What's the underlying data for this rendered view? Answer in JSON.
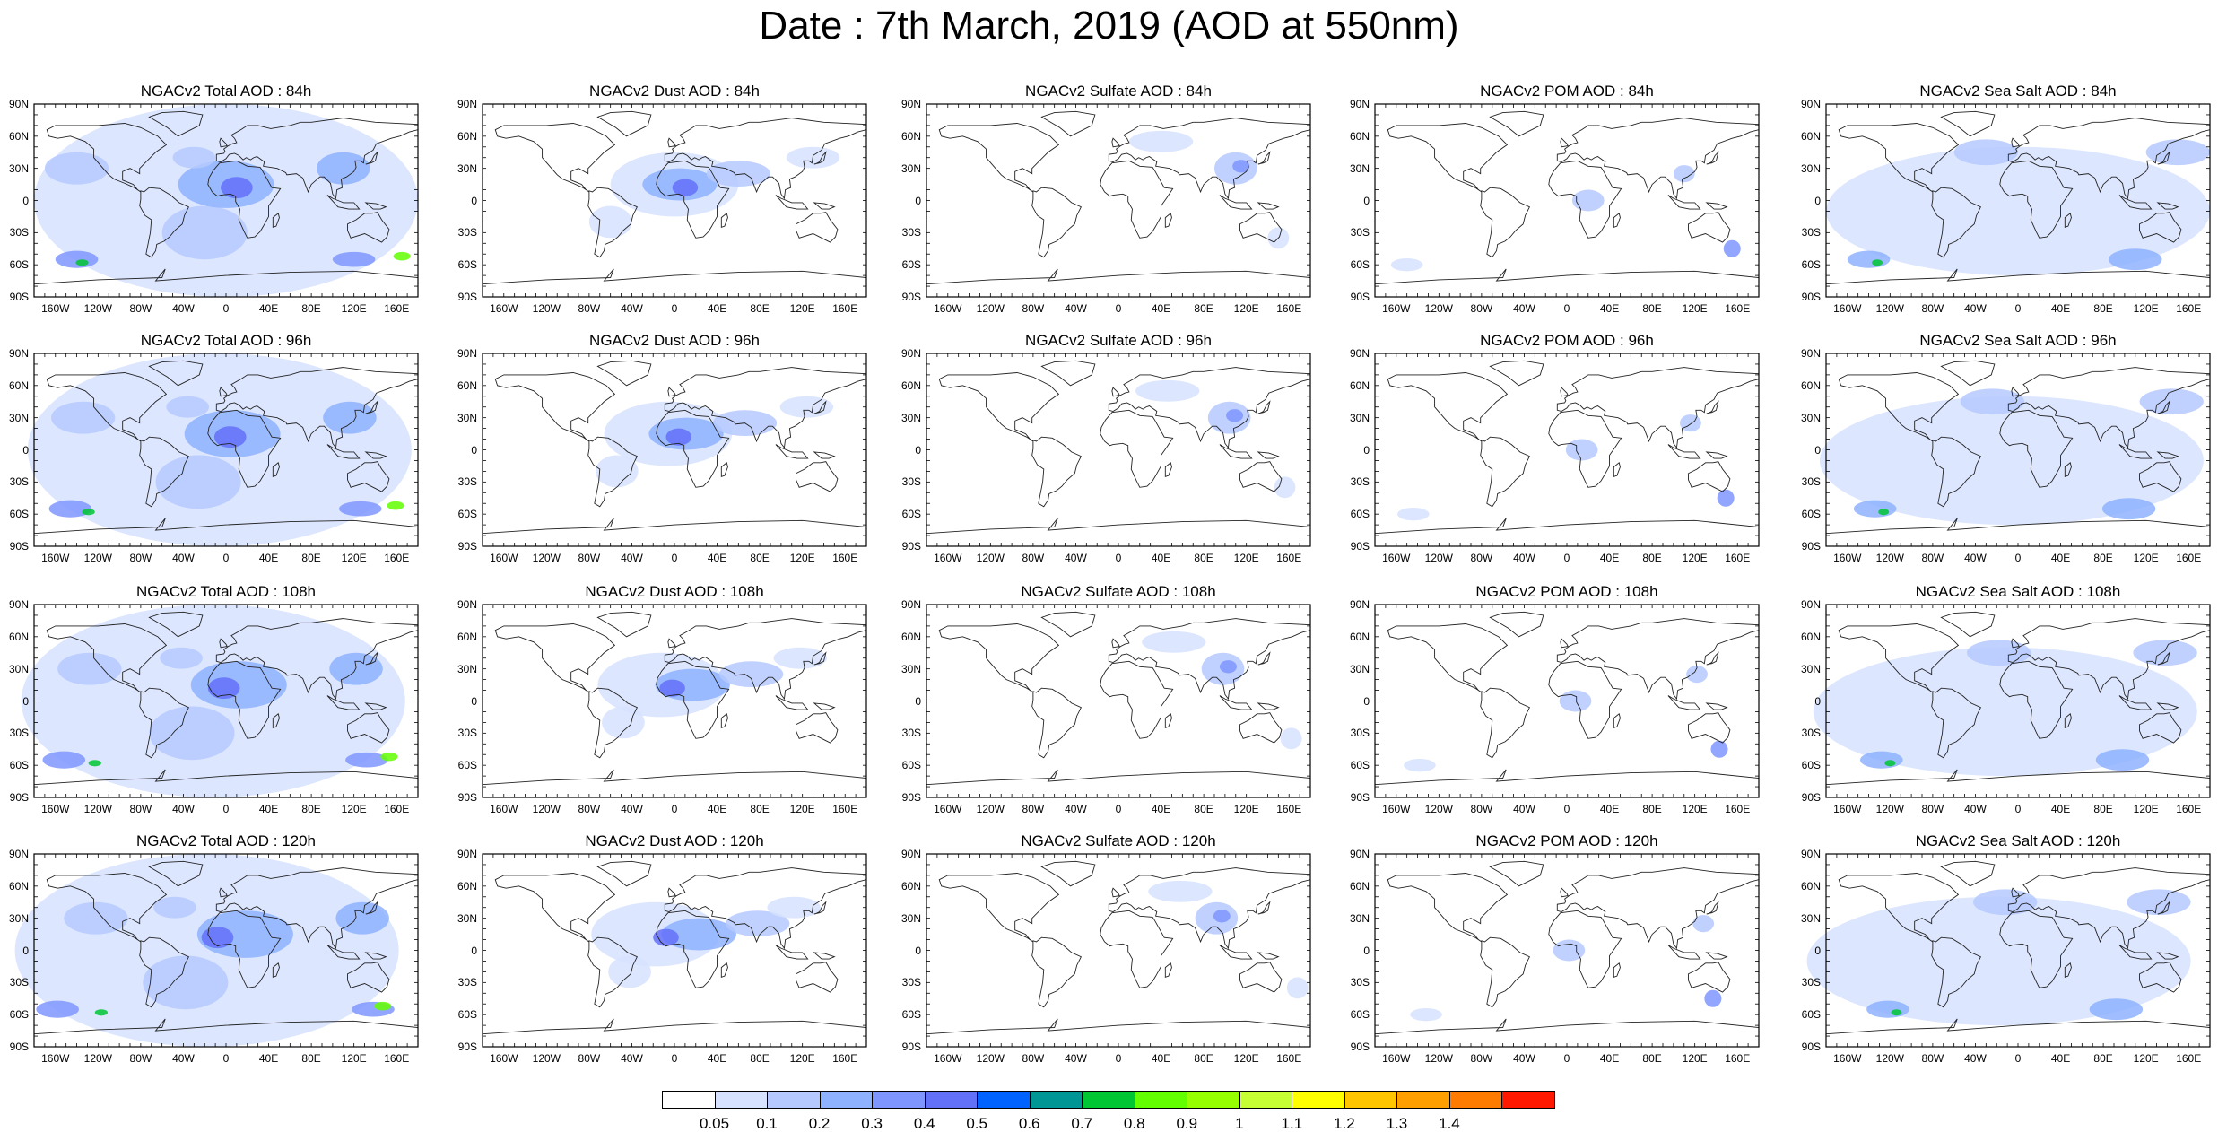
{
  "title": "Date : 7th March, 2019 (AOD at 550nm)",
  "lat_labels": [
    "90N",
    "60N",
    "30N",
    "0",
    "30S",
    "60S",
    "90S"
  ],
  "lon_labels": [
    "160W",
    "120W",
    "80W",
    "40W",
    "0",
    "40E",
    "80E",
    "120E",
    "160E"
  ],
  "species": [
    "Total",
    "Dust",
    "Sulfate",
    "POM",
    "Sea Salt"
  ],
  "lead_times": [
    "84h",
    "96h",
    "108h",
    "120h"
  ],
  "panels": [
    [
      "NGACv2 Total AOD : 84h",
      "NGACv2 Dust AOD : 84h",
      "NGACv2 Sulfate AOD : 84h",
      "NGACv2 POM AOD : 84h",
      "NGACv2 Sea Salt AOD : 84h"
    ],
    [
      "NGACv2 Total AOD : 96h",
      "NGACv2 Dust AOD : 96h",
      "NGACv2 Sulfate AOD : 96h",
      "NGACv2 POM AOD : 96h",
      "NGACv2 Sea Salt AOD : 96h"
    ],
    [
      "NGACv2 Total AOD : 108h",
      "NGACv2 Dust AOD : 108h",
      "NGACv2 Sulfate AOD : 108h",
      "NGACv2 POM AOD : 108h",
      "NGACv2 Sea Salt AOD : 108h"
    ],
    [
      "NGACv2 Total AOD : 120h",
      "NGACv2 Dust AOD : 120h",
      "NGACv2 Sulfate AOD : 120h",
      "NGACv2 POM AOD : 120h",
      "NGACv2 Sea Salt  AOD : 120h"
    ]
  ],
  "colorbar": {
    "levels": [
      "0.05",
      "0.1",
      "0.2",
      "0.3",
      "0.4",
      "0.5",
      "0.6",
      "0.7",
      "0.8",
      "0.9",
      "1",
      "1.1",
      "1.2",
      "1.3",
      "1.4"
    ],
    "colors": [
      "#ffffff",
      "#d6e2ff",
      "#b5c9ff",
      "#8eb2ff",
      "#7f96ff",
      "#6370f8",
      "#0063ff",
      "#009696",
      "#00c633",
      "#63ff00",
      "#96ff00",
      "#c6ff33",
      "#ffff00",
      "#ffc600",
      "#ffa000",
      "#ff7c00",
      "#ff1900"
    ]
  },
  "colors": {
    "land_outline": "#222222",
    "map_frame": "#000000"
  }
}
